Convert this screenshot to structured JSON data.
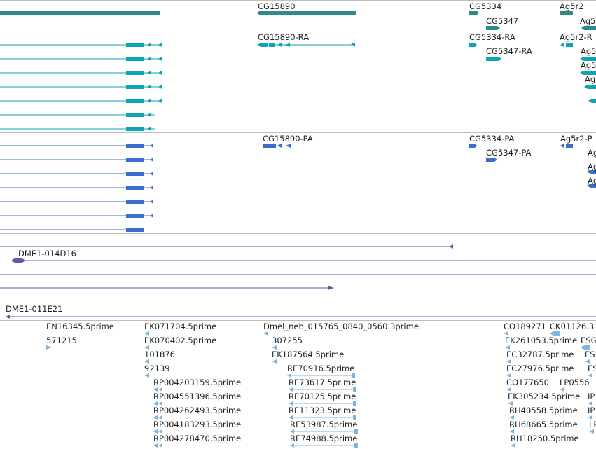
{
  "colors": {
    "gene": "#2e8b8b",
    "transcript": "#0fa3b8",
    "protein": "#3b6fce",
    "clone": "#6a56a8",
    "est": "#7fb5dc",
    "separator": "#bdbdbd"
  },
  "tracks": {
    "genes": {
      "labels": [
        "CG15890",
        "CG5334",
        "CG5347",
        "Ag5r2",
        "Ag5"
      ]
    },
    "transcripts": {
      "labels": [
        "CG15890-RA",
        "CG5334-RA",
        "CG5347-RA",
        "Ag5r2-R",
        "Ag5",
        "Ag5",
        "Ag"
      ]
    },
    "proteins": {
      "labels": [
        "CG15890-PA",
        "CG5334-PA",
        "CG5347-PA",
        "Ag5r2-P",
        "Ag",
        "Ag",
        "Ag"
      ]
    },
    "clones": {
      "labels": [
        "DME1-014D16",
        "DME1-011E21"
      ]
    },
    "ests": {
      "labels": [
        "EN16345.5prime",
        "571215",
        "EK071704.5prime",
        "EK070402.5prime",
        "101876",
        "92139",
        "RP004203159.5prime",
        "RP004551396.5prime",
        "RP004262493.5prime",
        "RP004183293.5prime",
        "RP004278470.5prime",
        "Dmel_neb_015765_0840_0560.3prime",
        "307255",
        "EK187564.5prime",
        "RE70916.5prime",
        "RE73617.5prime",
        "RE70125.5prime",
        "RE11323.5prime",
        "RE53987.5prime",
        "RE74988.5prime",
        "CO189271",
        "CK01126.3",
        "EK261053.5prime",
        "EC32787.5prime",
        "EC27976.5prime",
        "CO177650",
        "LP0556",
        "EK305234.5prime",
        "RH40558.5prime",
        "RH68665.5prime",
        "RH18250.5prime",
        "ESG",
        "ES",
        "ES",
        "IP",
        "IP",
        "LP"
      ]
    }
  }
}
